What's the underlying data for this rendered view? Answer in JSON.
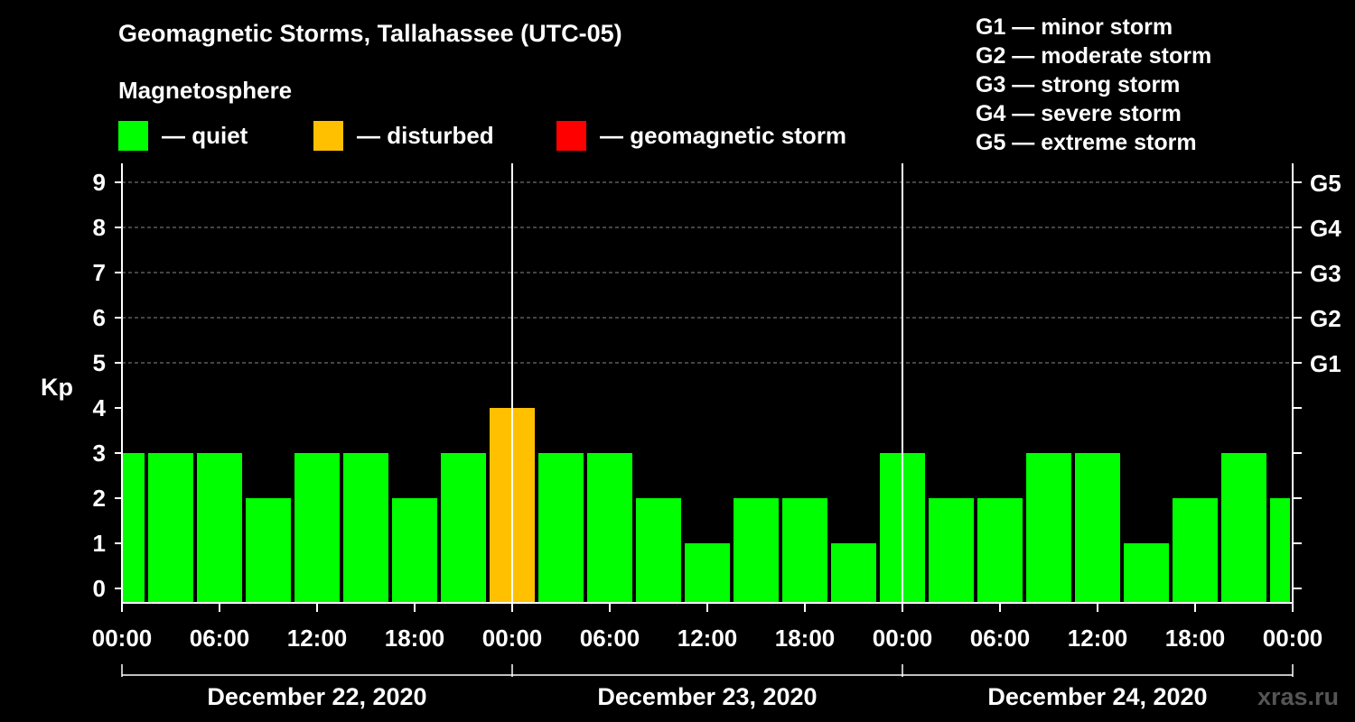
{
  "title": "Geomagnetic Storms, Tallahassee (UTC-05)",
  "magnetosphere_label": "Magnetosphere",
  "legend": [
    {
      "label": "— quiet",
      "color": "#00ff00"
    },
    {
      "label": "— disturbed",
      "color": "#ffc000"
    },
    {
      "label": "— geomagnetic storm",
      "color": "#ff0000"
    }
  ],
  "g_levels": [
    "G1 — minor storm",
    "G2 — moderate storm",
    "G3 — strong storm",
    "G4 — severe storm",
    "G5 — extreme storm"
  ],
  "source": "xras.ru",
  "chart_data": {
    "type": "bar",
    "ylabel": "Kp",
    "ylim": [
      0,
      9
    ],
    "y_ticks": [
      0,
      1,
      2,
      3,
      4,
      5,
      6,
      7,
      8,
      9
    ],
    "right_ticks": [
      {
        "value": 5,
        "label": "G1"
      },
      {
        "value": 6,
        "label": "G2"
      },
      {
        "value": 7,
        "label": "G3"
      },
      {
        "value": 8,
        "label": "G4"
      },
      {
        "value": 9,
        "label": "G5"
      }
    ],
    "x_tick_labels": [
      "00:00",
      "06:00",
      "12:00",
      "18:00",
      "00:00",
      "06:00",
      "12:00",
      "18:00",
      "00:00",
      "06:00",
      "12:00",
      "18:00",
      "00:00"
    ],
    "days": [
      "December 22, 2020",
      "December 23, 2020",
      "December 24, 2020"
    ],
    "bar_interval_hours": 3,
    "grid": "dashed horizontal",
    "values": [
      3,
      3,
      3,
      2,
      3,
      3,
      2,
      3,
      4,
      3,
      3,
      2,
      1,
      2,
      2,
      1,
      3,
      2,
      2,
      3,
      3,
      1,
      2,
      3,
      2
    ],
    "colors": {
      "quiet": "#00ff00",
      "disturbed": "#ffc000",
      "storm": "#ff0000"
    }
  }
}
